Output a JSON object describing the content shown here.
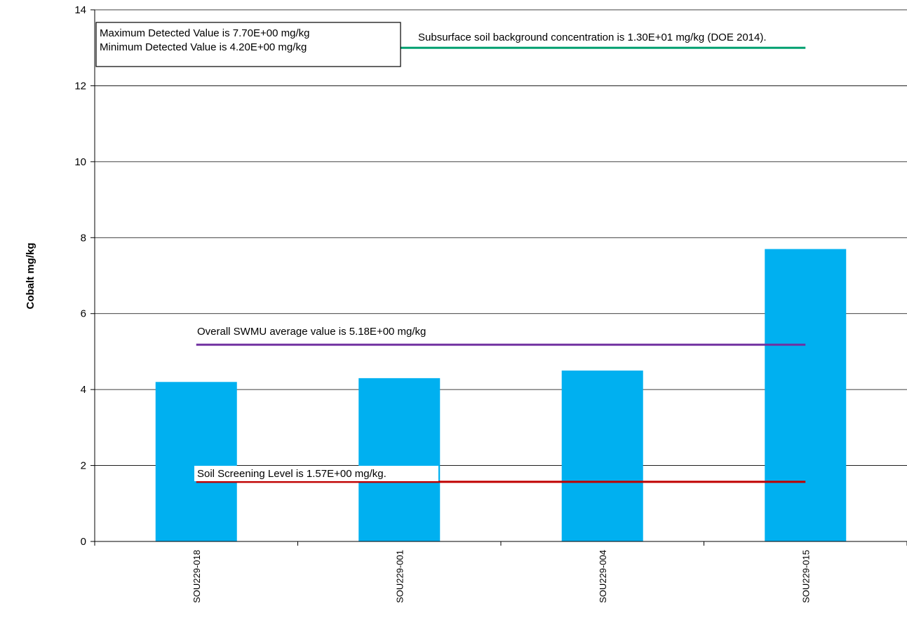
{
  "chart_data": {
    "type": "bar",
    "title": "",
    "xlabel": "",
    "ylabel": "Cobalt mg/kg",
    "ylim": [
      0,
      14
    ],
    "yticks": [
      "0",
      "2",
      "4",
      "6",
      "8",
      "10",
      "12",
      "14"
    ],
    "grid": true,
    "categories": [
      "SOU229-018",
      "SOU229-001",
      "SOU229-004",
      "SOU229-015"
    ],
    "values": [
      4.2,
      4.3,
      4.5,
      7.7
    ],
    "bar_color": "#00B0F0",
    "reference_lines": [
      {
        "name": "background",
        "value": 13.0,
        "color": "#00A070",
        "label": "Subsurface soil background  concentration is 1.30E+01 mg/kg  (DOE 2014)."
      },
      {
        "name": "average",
        "value": 5.18,
        "color": "#7030A0",
        "label": "Overall SWMU average value is 5.18E+00 mg/kg"
      },
      {
        "name": "screening",
        "value": 1.57,
        "color": "#C00000",
        "label": "Soil Screening Level is 1.57E+00 mg/kg."
      }
    ],
    "annotation_box": {
      "max_text": "Maximum  Detected Value  is 7.70E+00 mg/kg",
      "min_text": "Minimum  Detected Value  is 4.20E+00 mg/kg"
    }
  }
}
